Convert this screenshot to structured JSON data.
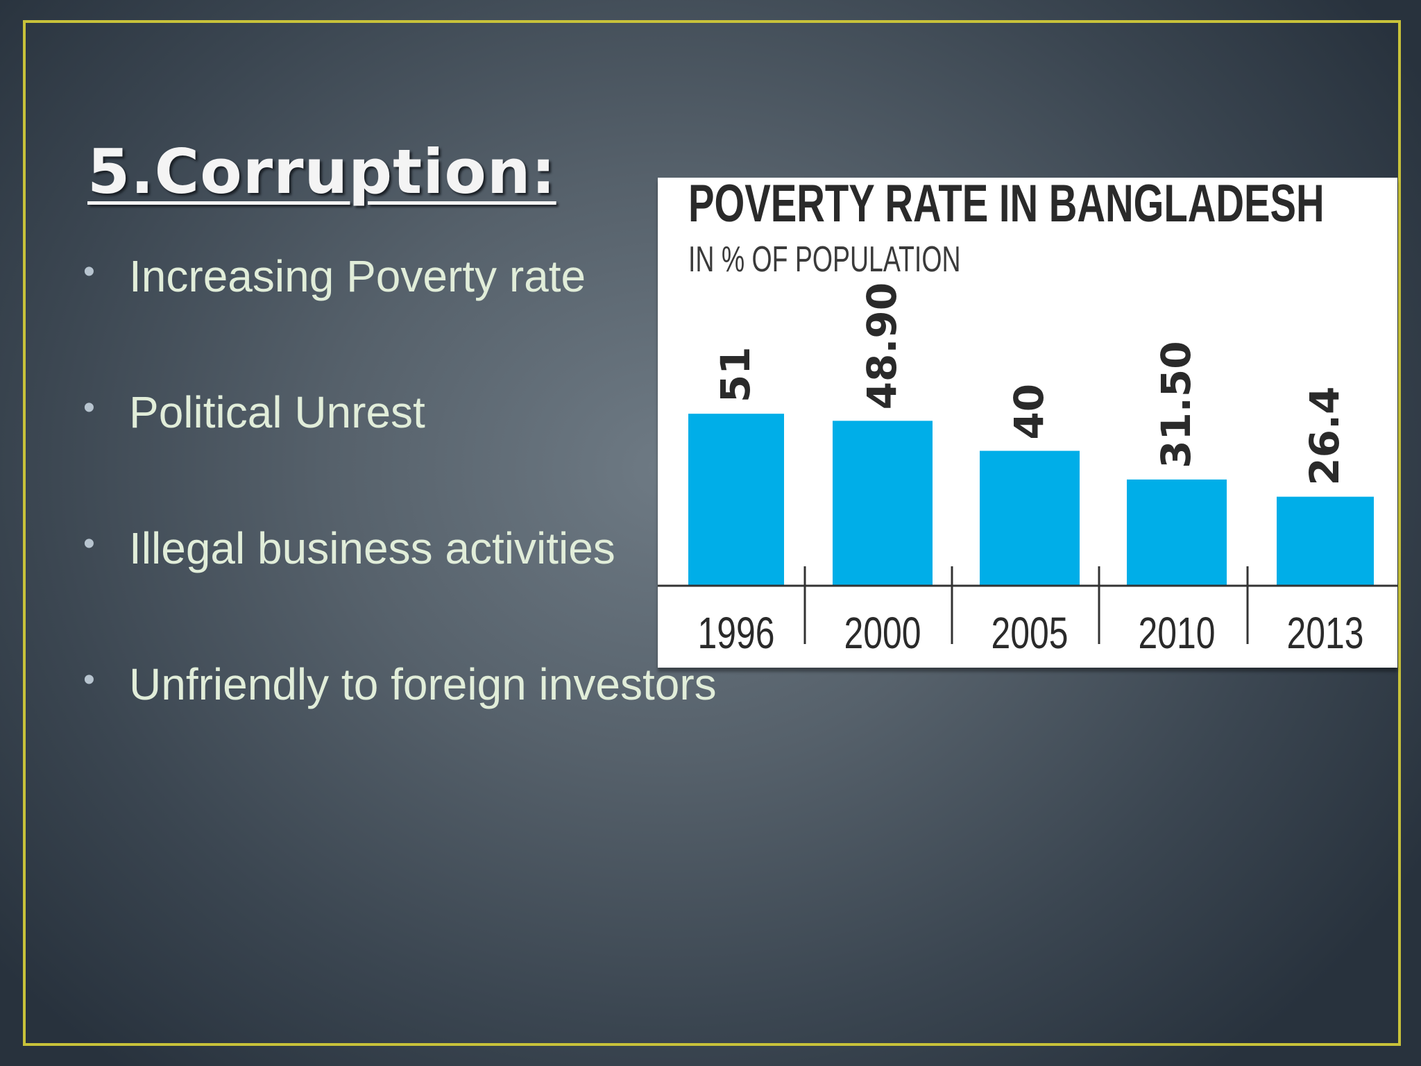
{
  "slide": {
    "title": "5.Corruption:",
    "bullets": [
      {
        "text": "Increasing Poverty rate"
      },
      {
        "text": "Political Unrest"
      },
      {
        "text": "Illegal business activities"
      },
      {
        "text": "Unfriendly to foreign investors"
      }
    ],
    "bullet_symbol": "•"
  },
  "colors": {
    "frame": "#c8c23a",
    "bar": "#00aee8",
    "title_text": "#f4f4f4",
    "bullet_text": "#e1edd9"
  },
  "chart_data": {
    "type": "bar",
    "title": "POVERTY RATE IN BANGLADESH",
    "subtitle": "IN % OF POPULATION",
    "categories": [
      "1996",
      "2000",
      "2005",
      "2010",
      "2013"
    ],
    "values": [
      51,
      48.9,
      40,
      31.5,
      26.4
    ],
    "value_labels": [
      "51",
      "48.90",
      "40",
      "31.50",
      "26.4"
    ],
    "ylim": [
      0,
      100
    ],
    "grid": false,
    "legend": "none",
    "xlabel": "",
    "ylabel": ""
  }
}
